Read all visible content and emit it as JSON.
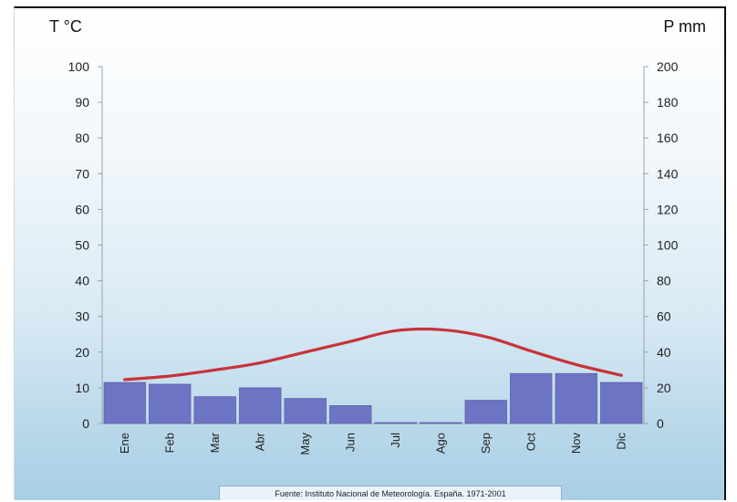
{
  "chart_data": {
    "type": "bar",
    "categories": [
      "Ene",
      "Feb",
      "Mar",
      "Abr",
      "May",
      "Jun",
      "Jul",
      "Ago",
      "Sep",
      "Oct",
      "Nov",
      "Dic"
    ],
    "series": [
      {
        "type": "bar",
        "axis": "right",
        "values": [
          23,
          22,
          15,
          20,
          14,
          10,
          0.5,
          0.5,
          13,
          28,
          28,
          23
        ]
      },
      {
        "type": "line",
        "axis": "left",
        "values": [
          12.3,
          13.3,
          15,
          17,
          20,
          23,
          26,
          26.3,
          24.3,
          20.3,
          16.5,
          13.5
        ]
      }
    ],
    "ylabel_left": "T °C",
    "ylabel_right": "P mm",
    "ylim_left": [
      0,
      100
    ],
    "ylim_right": [
      0,
      200
    ],
    "yticks_left": [
      "0",
      "10",
      "20",
      "30",
      "40",
      "50",
      "60",
      "70",
      "80",
      "90",
      "100"
    ],
    "yticks_right": [
      "0",
      "20",
      "40",
      "60",
      "80",
      "100",
      "120",
      "140",
      "160",
      "180",
      "200"
    ],
    "grid": false,
    "colors": {
      "bar": "#6e74c4",
      "bar_edge": "#5a5fa8",
      "line": "#c8323a"
    }
  },
  "source_note": "Fuente: Instituto Nacional de Meteorología. España. 1971-2001"
}
